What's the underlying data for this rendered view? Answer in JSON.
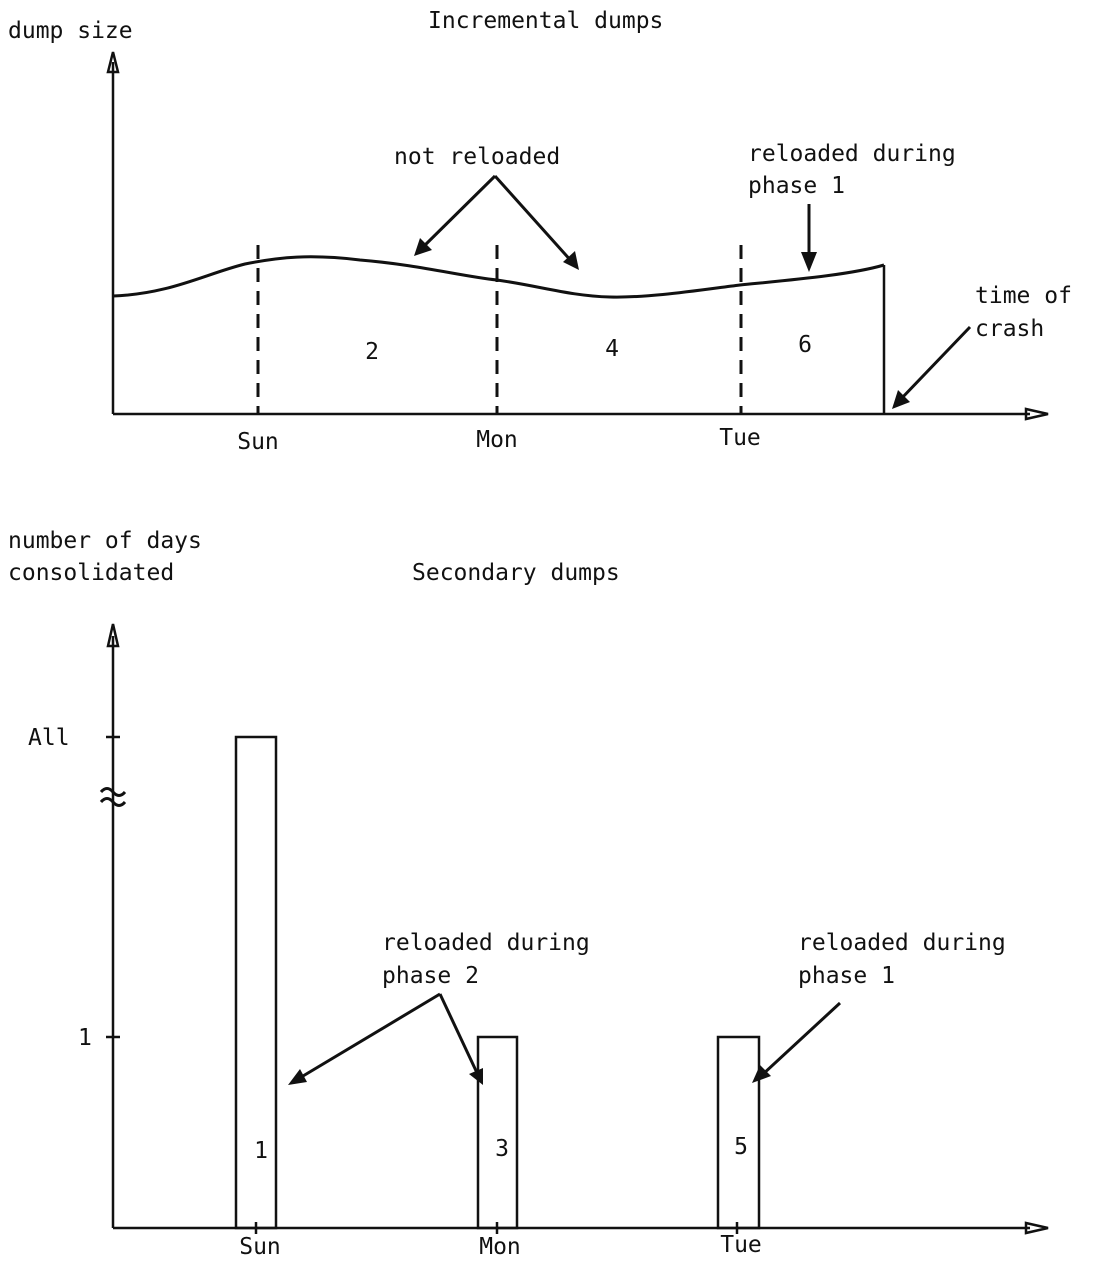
{
  "chart_data": [
    {
      "type": "area",
      "title": "Incremental dumps",
      "ylabel": "dump size",
      "xlabel": "",
      "x_ticks": [
        "Sun",
        "Mon",
        "Tue"
      ],
      "grid": false,
      "segments": [
        {
          "label": "2",
          "from": "Sun",
          "to": "Mon"
        },
        {
          "label": "4",
          "from": "Mon",
          "to": "Tue"
        },
        {
          "label": "6",
          "from": "Tue",
          "to": "time of crash"
        }
      ],
      "annotations": [
        {
          "text": "not reloaded",
          "targets": [
            "2",
            "4"
          ]
        },
        {
          "text": "reloaded during phase 1",
          "lines": [
            "reloaded during",
            "phase 1"
          ],
          "targets": [
            "6"
          ]
        },
        {
          "text": "time of crash",
          "lines": [
            "time of",
            "crash"
          ]
        }
      ]
    },
    {
      "type": "bar",
      "title": "Secondary dumps",
      "ylabel": "number of days consolidated",
      "ylabel_lines": [
        "number of days",
        "consolidated"
      ],
      "xlabel": "",
      "categories": [
        "Sun",
        "Mon",
        "Tue"
      ],
      "y_ticks": [
        "1",
        "All"
      ],
      "axis_break": true,
      "grid": false,
      "bars": [
        {
          "category": "Sun",
          "value": "All",
          "label": "1"
        },
        {
          "category": "Mon",
          "value": 1,
          "label": "3"
        },
        {
          "category": "Tue",
          "value": 1,
          "label": "5"
        }
      ],
      "annotations": [
        {
          "text": "reloaded during phase 2",
          "lines": [
            "reloaded during",
            "phase 2"
          ],
          "targets": [
            "1",
            "3"
          ]
        },
        {
          "text": "reloaded during phase 1",
          "lines": [
            "reloaded during",
            "phase 1"
          ],
          "targets": [
            "5"
          ]
        }
      ]
    }
  ]
}
